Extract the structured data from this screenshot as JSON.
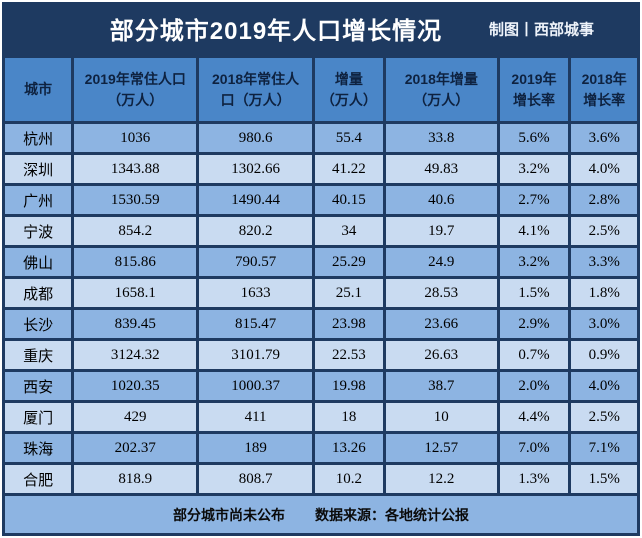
{
  "header": {
    "credit": "制图丨西部城事"
  },
  "colors": {
    "frame_navy": "#1e3a61",
    "header_blue": "#4a86c8",
    "row_medium_blue": "#8db4e2",
    "row_light_blue": "#c9dbf1",
    "title_text": "#ffffff",
    "header_text": "#0e2240",
    "cell_text": "#000000"
  },
  "footer": {
    "note": "部分城市尚未公布",
    "source": "数据来源：各地统计公报"
  },
  "chart_data": {
    "type": "table",
    "title": "部分城市2019年人口增长情况",
    "columns": [
      "城市",
      "2019年常住人口\n（万人）",
      "2018年常住人\n口（万人）",
      "增量\n（万人）",
      "2018年增量\n（万人）",
      "2019年\n增长率",
      "2018年\n增长率"
    ],
    "rows": [
      {
        "city": "杭州",
        "values": [
          "1036",
          "980.6",
          "55.4",
          "33.8",
          "5.6%",
          "3.6%"
        ]
      },
      {
        "city": "深圳",
        "values": [
          "1343.88",
          "1302.66",
          "41.22",
          "49.83",
          "3.2%",
          "4.0%"
        ]
      },
      {
        "city": "广州",
        "values": [
          "1530.59",
          "1490.44",
          "40.15",
          "40.6",
          "2.7%",
          "2.8%"
        ]
      },
      {
        "city": "宁波",
        "values": [
          "854.2",
          "820.2",
          "34",
          "19.7",
          "4.1%",
          "2.5%"
        ]
      },
      {
        "city": "佛山",
        "values": [
          "815.86",
          "790.57",
          "25.29",
          "24.9",
          "3.2%",
          "3.3%"
        ]
      },
      {
        "city": "成都",
        "values": [
          "1658.1",
          "1633",
          "25.1",
          "28.53",
          "1.5%",
          "1.8%"
        ]
      },
      {
        "city": "长沙",
        "values": [
          "839.45",
          "815.47",
          "23.98",
          "23.66",
          "2.9%",
          "3.0%"
        ]
      },
      {
        "city": "重庆",
        "values": [
          "3124.32",
          "3101.79",
          "22.53",
          "26.63",
          "0.7%",
          "0.9%"
        ]
      },
      {
        "city": "西安",
        "values": [
          "1020.35",
          "1000.37",
          "19.98",
          "38.7",
          "2.0%",
          "4.0%"
        ]
      },
      {
        "city": "厦门",
        "values": [
          "429",
          "411",
          "18",
          "10",
          "4.4%",
          "2.5%"
        ]
      },
      {
        "city": "珠海",
        "values": [
          "202.37",
          "189",
          "13.26",
          "12.57",
          "7.0%",
          "7.1%"
        ]
      },
      {
        "city": "合肥",
        "values": [
          "818.9",
          "808.7",
          "10.2",
          "12.2",
          "1.3%",
          "1.5%"
        ]
      }
    ]
  }
}
